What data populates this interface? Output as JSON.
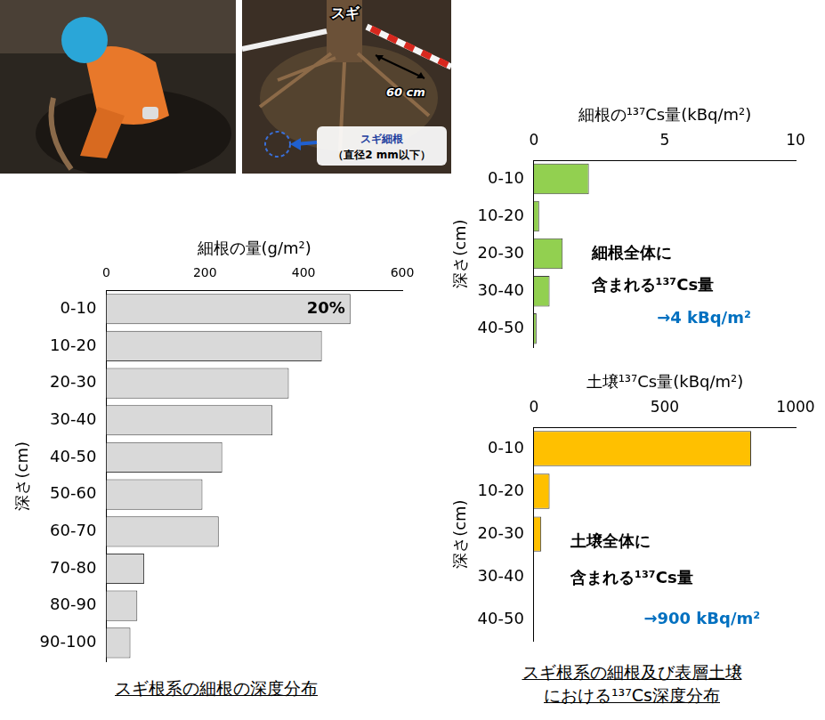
{
  "photo": {
    "tree": "スギ",
    "length": "60 cm",
    "root": [
      "スギ細根",
      "（直径2 mm以下）"
    ]
  },
  "chart_data": [
    {
      "type": "bar",
      "orientation": "horizontal",
      "x_label": "細根の量(g/m²)",
      "y_label": "深さ(cm)",
      "categories": [
        "0-10",
        "10-20",
        "20-30",
        "30-40",
        "40-50",
        "50-60",
        "60-70",
        "70-80",
        "80-90",
        "90-100"
      ],
      "values": [
        495,
        437,
        370,
        337,
        235,
        195,
        228,
        77,
        63,
        49
      ],
      "color": "#d9d9d9",
      "xlim": [
        0,
        600
      ],
      "xticks": [
        0,
        200,
        400,
        600
      ],
      "grid": false,
      "annotations": [
        {
          "text": "20%",
          "category": "0-10"
        }
      ],
      "caption": [
        "スギ根系の細根の深度分布"
      ]
    },
    {
      "type": "bar",
      "orientation": "horizontal",
      "x_label": "細根の¹³⁷Cs量(kBq/m²)",
      "y_label": "深さ(cm)",
      "categories": [
        "0-10",
        "10-20",
        "20-30",
        "30-40",
        "40-50"
      ],
      "values": [
        2.1,
        0.2,
        1.1,
        0.6,
        0.1
      ],
      "color": "#92d050",
      "xlim": [
        0,
        10
      ],
      "xticks": [
        0,
        5,
        10
      ],
      "grid": false,
      "note": [
        "細根全体に",
        "含まれる¹³⁷Cs量"
      ],
      "note_value": "→4 kBq/m²"
    },
    {
      "type": "bar",
      "orientation": "horizontal",
      "x_label": "土壌¹³⁷Cs量(kBq/m²)",
      "y_label": "深さ(cm)",
      "categories": [
        "0-10",
        "10-20",
        "20-30",
        "30-40",
        "40-50"
      ],
      "values": [
        830,
        60,
        28,
        0,
        0
      ],
      "color": "#ffc000",
      "xlim": [
        0,
        1000
      ],
      "xticks": [
        0,
        500,
        1000
      ],
      "grid": false,
      "note": [
        "土壌全体に",
        "含まれる¹³⁷Cs量"
      ],
      "note_value": "→900 kBq/m²",
      "caption": [
        "スギ根系の細根及び表層土壌",
        "における¹³⁷Cs深度分布"
      ]
    }
  ]
}
